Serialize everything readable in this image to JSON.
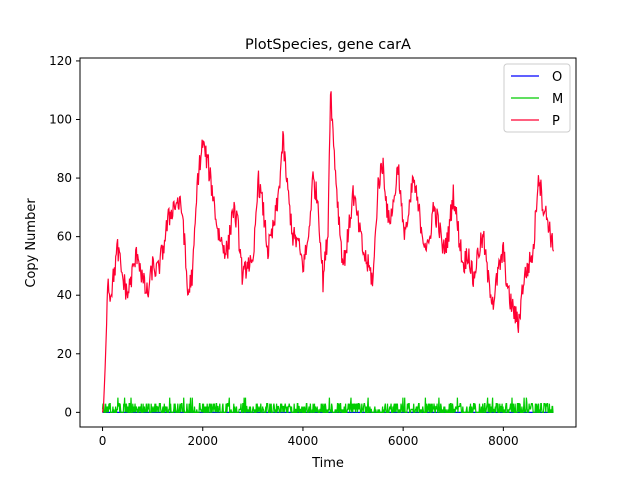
{
  "chart_data": {
    "type": "line",
    "title": "PlotSpecies, gene carA",
    "xlabel": "Time",
    "ylabel": "Copy Number",
    "xlim": [
      -450,
      9450
    ],
    "ylim": [
      -5,
      121
    ],
    "xticks": [
      0,
      2000,
      4000,
      6000,
      8000
    ],
    "yticks": [
      0,
      20,
      40,
      60,
      80,
      100,
      120
    ],
    "grid": false,
    "legend_position": "top-right",
    "series": [
      {
        "name": "O",
        "color": "#0000ff",
        "x": [
          0,
          9000
        ],
        "y": [
          0,
          0
        ]
      },
      {
        "name": "M",
        "color": "#00cc00",
        "x": [
          0,
          9000
        ],
        "y": [
          0,
          0
        ],
        "range": [
          0,
          5
        ],
        "style": "noise"
      },
      {
        "name": "P",
        "color": "#ff0033",
        "x": [
          0,
          20,
          40,
          60,
          80,
          100,
          150,
          200,
          300,
          400,
          500,
          600,
          700,
          800,
          900,
          1000,
          1100,
          1200,
          1300,
          1400,
          1500,
          1600,
          1700,
          1800,
          1900,
          2000,
          2100,
          2200,
          2300,
          2400,
          2500,
          2600,
          2700,
          2800,
          2900,
          3000,
          3100,
          3200,
          3300,
          3400,
          3500,
          3600,
          3700,
          3800,
          3900,
          4000,
          4100,
          4200,
          4300,
          4400,
          4500,
          4550,
          4600,
          4700,
          4800,
          4900,
          5000,
          5100,
          5200,
          5300,
          5400,
          5500,
          5600,
          5700,
          5800,
          5900,
          6000,
          6100,
          6200,
          6300,
          6400,
          6500,
          6600,
          6700,
          6800,
          6900,
          7000,
          7100,
          7200,
          7300,
          7400,
          7500,
          7600,
          7700,
          7800,
          7900,
          8000,
          8100,
          8200,
          8300,
          8400,
          8500,
          8600,
          8700,
          8800,
          8900,
          9000
        ],
        "y": [
          0,
          2,
          10,
          20,
          30,
          46,
          40,
          44,
          56,
          46,
          40,
          48,
          55,
          45,
          40,
          50,
          48,
          55,
          65,
          70,
          72,
          68,
          40,
          48,
          80,
          92,
          85,
          75,
          62,
          57,
          55,
          70,
          64,
          45,
          52,
          48,
          80,
          70,
          55,
          62,
          72,
          93,
          75,
          60,
          58,
          50,
          58,
          80,
          72,
          45,
          62,
          112,
          95,
          70,
          50,
          60,
          75,
          65,
          55,
          50,
          45,
          78,
          85,
          65,
          70,
          85,
          62,
          65,
          80,
          70,
          60,
          55,
          70,
          65,
          55,
          60,
          75,
          62,
          50,
          55,
          45,
          55,
          60,
          45,
          38,
          48,
          55,
          40,
          35,
          30,
          45,
          50,
          55,
          82,
          70,
          65,
          55
        ]
      }
    ]
  }
}
